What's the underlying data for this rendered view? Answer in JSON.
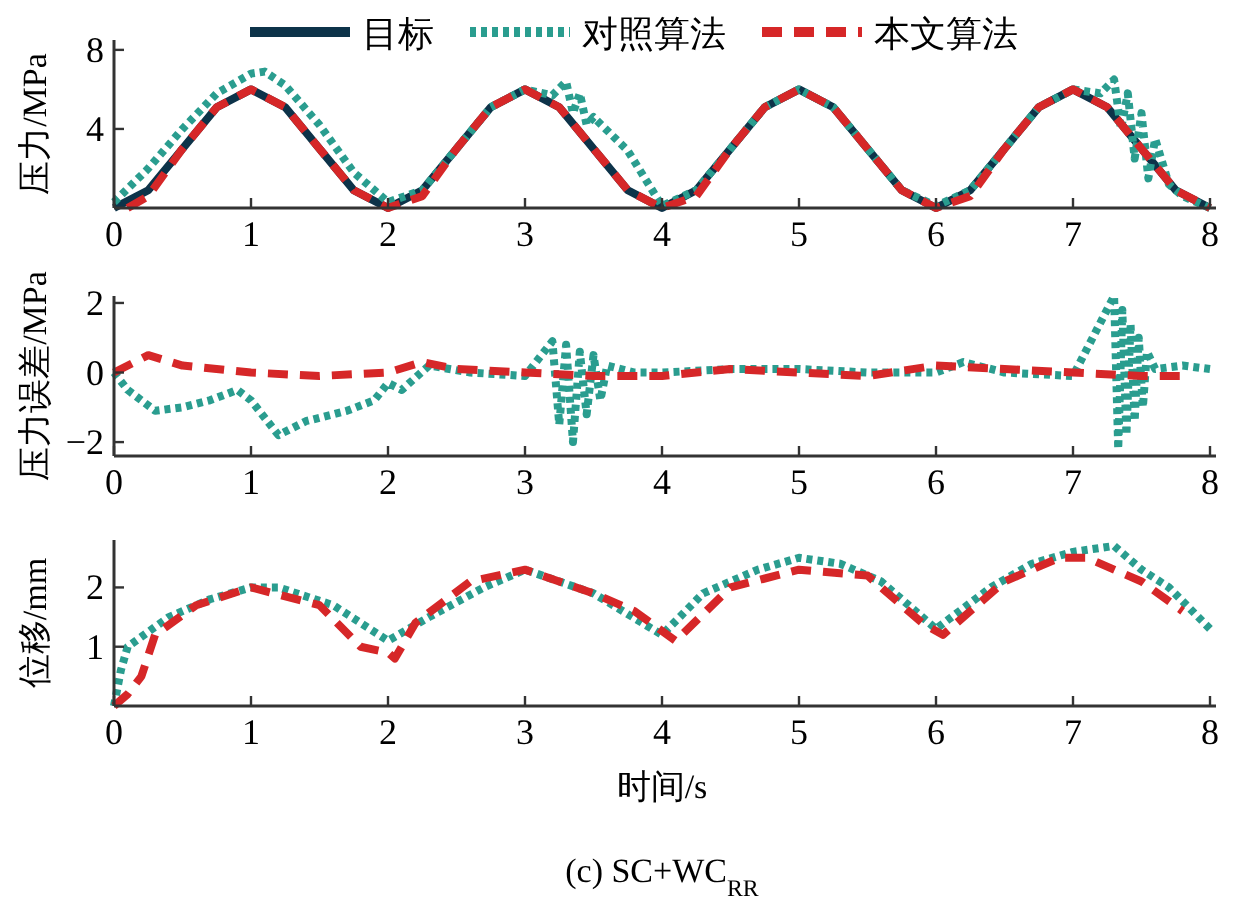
{
  "chart_data": [
    {
      "type": "line",
      "ylabel": "压力/MPa",
      "xlim": [
        0,
        8
      ],
      "xticks": [
        0,
        1,
        2,
        3,
        4,
        5,
        6,
        7,
        8
      ],
      "ylim": [
        0,
        8.5
      ],
      "yticks": [
        4,
        8
      ],
      "legend": "top",
      "series": [
        {
          "name": "目标",
          "color": "#0d3349",
          "line_style": "solid",
          "x": [
            0,
            0.25,
            0.5,
            0.75,
            1,
            1.25,
            1.5,
            1.75,
            2,
            2.25,
            2.5,
            2.75,
            3,
            3.25,
            3.5,
            3.75,
            4,
            4.25,
            4.5,
            4.75,
            5,
            5.25,
            5.5,
            5.75,
            6,
            6.25,
            6.5,
            6.75,
            7,
            7.25,
            7.5,
            7.75,
            8
          ],
          "values": [
            0,
            0.9,
            3,
            5.1,
            6,
            5.1,
            3,
            0.9,
            0,
            0.9,
            3,
            5.1,
            6,
            5.1,
            3,
            0.9,
            0,
            0.9,
            3,
            5.1,
            6,
            5.1,
            3,
            0.9,
            0,
            0.9,
            3,
            5.1,
            6,
            5.1,
            3,
            0.9,
            0
          ]
        },
        {
          "name": "对照算法",
          "color": "#2a9d8f",
          "line_style": "dotted",
          "x": [
            0,
            0.25,
            0.5,
            0.75,
            1,
            1.1,
            1.25,
            1.5,
            1.75,
            2,
            2.25,
            2.5,
            2.75,
            3,
            3.2,
            3.3,
            3.35,
            3.4,
            3.45,
            3.5,
            3.75,
            4,
            4.25,
            4.5,
            4.75,
            5,
            5.25,
            5.5,
            5.75,
            6,
            6.25,
            6.5,
            6.75,
            7,
            7.2,
            7.3,
            7.35,
            7.4,
            7.45,
            7.5,
            7.55,
            7.6,
            7.7,
            7.8,
            8
          ],
          "values": [
            0.3,
            2,
            4,
            5.8,
            6.8,
            6.9,
            6.2,
            4.2,
            1.8,
            0.3,
            0.9,
            3,
            5.1,
            6,
            5.7,
            6.4,
            4.8,
            5.8,
            4.2,
            4.6,
            2.9,
            0.1,
            0.9,
            3,
            5.1,
            6,
            5.1,
            3,
            0.9,
            0.1,
            0.9,
            3,
            5.1,
            6,
            5.8,
            6.5,
            4,
            5.8,
            2.5,
            4.8,
            1.5,
            3.5,
            1.2,
            0.6,
            0
          ]
        },
        {
          "name": "本文算法",
          "color": "#d62728",
          "line_style": "dashed",
          "x": [
            0.1,
            0.25,
            0.5,
            0.75,
            1,
            1.25,
            1.5,
            1.75,
            2,
            2.25,
            2.5,
            2.75,
            3,
            3.25,
            3.5,
            3.75,
            4,
            4.25,
            4.5,
            4.75,
            5,
            5.25,
            5.5,
            5.75,
            6,
            6.25,
            6.5,
            6.75,
            7,
            7.25,
            7.5,
            7.75,
            8
          ],
          "values": [
            0,
            0.6,
            3,
            5.1,
            6,
            5.1,
            3,
            0.9,
            0,
            0.6,
            3,
            5.1,
            6,
            5.1,
            3,
            0.9,
            0,
            0.6,
            3,
            5.1,
            6,
            5.1,
            3,
            0.9,
            0,
            0.6,
            3,
            5.1,
            6,
            5.1,
            3,
            0.9,
            0
          ]
        }
      ]
    },
    {
      "type": "line",
      "ylabel": "压力误差/MPa",
      "xlim": [
        0,
        8
      ],
      "xticks": [
        0,
        1,
        2,
        3,
        4,
        5,
        6,
        7,
        8
      ],
      "ylim": [
        -2.4,
        2.2
      ],
      "yticks": [
        {
          "value": -2,
          "label": "−2"
        },
        0,
        2
      ],
      "series": [
        {
          "color": "#2a9d8f",
          "line_style": "dotted",
          "x": [
            0,
            0.1,
            0.3,
            0.5,
            0.7,
            0.9,
            1,
            1.2,
            1.4,
            1.7,
            1.9,
            2,
            2.1,
            2.3,
            2.6,
            3,
            3.2,
            3.25,
            3.3,
            3.35,
            3.4,
            3.45,
            3.5,
            3.55,
            3.6,
            3.8,
            4,
            4.5,
            5,
            5.5,
            6,
            6.2,
            6.5,
            7,
            7.3,
            7.33,
            7.36,
            7.39,
            7.42,
            7.45,
            7.48,
            7.51,
            7.54,
            7.6,
            7.8,
            8
          ],
          "values": [
            0,
            -0.5,
            -1.1,
            -1,
            -0.8,
            -0.5,
            -0.8,
            -1.8,
            -1.4,
            -1.1,
            -0.8,
            -0.3,
            -0.5,
            0.2,
            0,
            -0.1,
            0.9,
            -1.5,
            0.8,
            -2,
            0.6,
            -1.2,
            0.5,
            -0.8,
            0.2,
            0,
            0,
            0.1,
            0.1,
            0,
            0,
            0.3,
            0,
            -0.1,
            2.2,
            -2.2,
            1.8,
            -1.8,
            1.4,
            -1.4,
            1,
            -1,
            0.6,
            0.1,
            0.2,
            0.1
          ]
        },
        {
          "color": "#d62728",
          "line_style": "dashed",
          "x": [
            0,
            0.25,
            0.5,
            1,
            1.5,
            2,
            2.25,
            2.5,
            3,
            3.5,
            4,
            4.5,
            5,
            5.5,
            6,
            6.5,
            7,
            7.5,
            7.8
          ],
          "values": [
            0,
            0.5,
            0.2,
            0,
            -0.1,
            0,
            0.3,
            0.1,
            0,
            -0.1,
            -0.1,
            0.1,
            0,
            -0.1,
            0.2,
            0.1,
            0,
            -0.1,
            -0.1
          ]
        }
      ]
    },
    {
      "type": "line",
      "ylabel": "位移/mm",
      "xlabel": "时间/s",
      "xlim": [
        0,
        8
      ],
      "xticks": [
        0,
        1,
        2,
        3,
        4,
        5,
        6,
        7,
        8
      ],
      "ylim": [
        0,
        2.8
      ],
      "yticks": [
        1,
        2
      ],
      "annotations": [
        "(c) SC+WC$_{RR}$"
      ],
      "series": [
        {
          "color": "#2a9d8f",
          "line_style": "dotted",
          "x": [
            0,
            0.05,
            0.1,
            0.4,
            0.7,
            1,
            1.2,
            1.6,
            2,
            2.3,
            2.7,
            3,
            3.5,
            4,
            4.3,
            4.7,
            5,
            5.3,
            5.6,
            6,
            6.4,
            6.7,
            7,
            7.3,
            7.5,
            7.7,
            8
          ],
          "values": [
            0,
            0.6,
            1,
            1.5,
            1.8,
            2,
            2,
            1.7,
            1.1,
            1.5,
            2,
            2.3,
            1.9,
            1.2,
            1.9,
            2.3,
            2.5,
            2.4,
            2.1,
            1.3,
            2,
            2.4,
            2.6,
            2.7,
            2.3,
            2,
            1.3
          ]
        },
        {
          "color": "#d62728",
          "line_style": "dashed",
          "x": [
            0,
            0.1,
            0.2,
            0.3,
            0.6,
            1,
            1.5,
            1.8,
            2,
            2.05,
            2.2,
            2.6,
            3,
            3.5,
            3.8,
            4.1,
            4.5,
            5,
            5.5,
            5.9,
            6.05,
            6.5,
            6.9,
            7.1,
            7.5,
            7.8
          ],
          "values": [
            0,
            0.2,
            0.5,
            1.2,
            1.7,
            2,
            1.7,
            1,
            0.9,
            0.8,
            1.4,
            2.1,
            2.3,
            1.9,
            1.6,
            1.1,
            2,
            2.3,
            2.2,
            1.4,
            1.2,
            2.1,
            2.5,
            2.5,
            2.1,
            1.6
          ]
        }
      ]
    }
  ]
}
